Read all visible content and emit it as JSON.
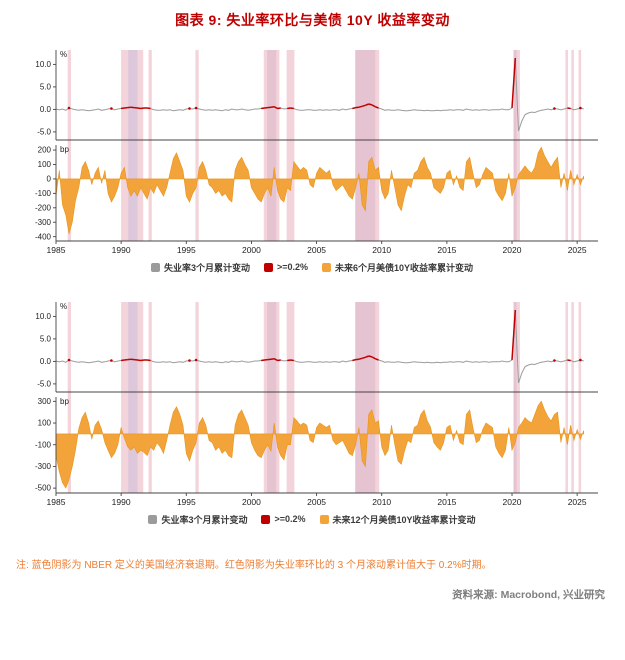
{
  "title": "图表 9:  失业率环比与美债 10Y 收益率变动",
  "note": "注: 蓝色阴影为 NBER 定义的美国经济衰退期。红色阴影为失业率环比的 3 个月滚动累计值大于 0.2%时期。",
  "source": "资料来源: Macrobond, 兴业研究",
  "colors": {
    "title": "#c00000",
    "gray_line": "#9b9b9b",
    "accent_red": "#c00000",
    "orange_area": "#f2a43a",
    "orange_stroke": "#e8941a",
    "band_red": "#e9b0bb",
    "band_nber": "#c9bcdc",
    "axis": "#444444",
    "note": "#ed7d31",
    "source": "#7f7f7f"
  },
  "chart_data": {
    "type": "line+area",
    "title": "失业率环比与美债 10Y 收益率变动",
    "x_start": 1985,
    "x_step_years": 0.25,
    "xlim": [
      1985,
      2026.6
    ],
    "x_ticks": [
      1985,
      1990,
      1995,
      2000,
      2005,
      2010,
      2015,
      2020,
      2025
    ],
    "threshold_pct": 0.2,
    "unemployment_3m_change_pct": [
      0.1,
      -0.1,
      0.1,
      -0.2,
      0.3,
      0.1,
      -0.1,
      -0.2,
      -0.1,
      -0.2,
      -0.3,
      -0.2,
      -0.1,
      0.1,
      -0.2,
      -0.1,
      0.1,
      0.2,
      -0.1,
      0.1,
      0.2,
      0.3,
      0.4,
      0.5,
      0.4,
      0.3,
      0.2,
      0.3,
      0.3,
      0.2,
      -0.1,
      -0.2,
      -0.2,
      -0.1,
      -0.2,
      -0.1,
      -0.3,
      -0.2,
      -0.1,
      -0.2,
      0.1,
      0.2,
      0.1,
      0.3,
      0.1,
      -0.1,
      -0.2,
      -0.1,
      -0.2,
      -0.1,
      -0.2,
      -0.3,
      -0.1,
      -0.2,
      0.1,
      -0.1,
      -0.1,
      0.1,
      -0.1,
      -0.2,
      -0.1,
      0.1,
      0.1,
      0.2,
      0.3,
      0.4,
      0.5,
      0.6,
      0.2,
      0.3,
      0.1,
      0.2,
      0.3,
      0.2,
      -0.1,
      -0.2,
      -0.2,
      -0.1,
      -0.1,
      -0.2,
      -0.2,
      -0.1,
      -0.2,
      -0.1,
      -0.2,
      -0.1,
      -0.1,
      -0.2,
      0.1,
      -0.1,
      0.1,
      0.2,
      0.4,
      0.5,
      0.7,
      0.9,
      1.2,
      1.0,
      0.6,
      0.3,
      0.1,
      -0.2,
      -0.1,
      -0.2,
      -0.2,
      -0.1,
      -0.2,
      -0.3,
      -0.3,
      -0.2,
      -0.1,
      -0.2,
      -0.2,
      -0.3,
      -0.2,
      -0.3,
      -0.3,
      -0.2,
      -0.3,
      -0.2,
      -0.2,
      -0.1,
      -0.2,
      -0.1,
      -0.1,
      -0.2,
      0.1,
      -0.1,
      -0.2,
      -0.1,
      -0.2,
      -0.1,
      -0.1,
      -0.2,
      -0.1,
      -0.1,
      -0.1,
      0.1,
      -0.1,
      -0.1,
      0.3,
      11.4,
      -4.8,
      -2.6,
      -1.2,
      -0.8,
      -0.6,
      -0.7,
      -0.4,
      -0.2,
      -0.1,
      0.1,
      -0.1,
      0.2,
      0.1,
      -0.1,
      0.1,
      0.3,
      0.2,
      -0.1,
      0.1,
      0.3,
      0.1
    ],
    "bands": [
      {
        "type": "red",
        "from": 1985.9,
        "to": 1986.15
      },
      {
        "type": "red",
        "from": 1990.0,
        "to": 1991.7
      },
      {
        "type": "nber",
        "from": 1990.55,
        "to": 1991.25
      },
      {
        "type": "red",
        "from": 1992.1,
        "to": 1992.35
      },
      {
        "type": "red",
        "from": 1995.7,
        "to": 1995.95
      },
      {
        "type": "nber",
        "from": 2001.2,
        "to": 2001.9
      },
      {
        "type": "red",
        "from": 2000.95,
        "to": 2002.15
      },
      {
        "type": "red",
        "from": 2002.7,
        "to": 2003.3
      },
      {
        "type": "nber",
        "from": 2007.95,
        "to": 2009.5
      },
      {
        "type": "red",
        "from": 2008.0,
        "to": 2009.8
      },
      {
        "type": "nber",
        "from": 2020.1,
        "to": 2020.35
      },
      {
        "type": "red",
        "from": 2020.15,
        "to": 2020.6
      },
      {
        "type": "red",
        "from": 2024.1,
        "to": 2024.3
      },
      {
        "type": "red",
        "from": 2024.55,
        "to": 2024.75
      },
      {
        "type": "red",
        "from": 2025.1,
        "to": 2025.3
      }
    ],
    "panels": [
      {
        "upper": {
          "unit": "%",
          "ytick_values": [
            10,
            5,
            0,
            -5
          ],
          "ylim": [
            -6.8,
            13.2
          ]
        },
        "lower": {
          "unit": "bp",
          "name": "未来6个月美债10Y收益率累计变动",
          "ytick_values": [
            200,
            100,
            0,
            -100,
            -200,
            -300,
            -400
          ],
          "ylim": [
            -430,
            235
          ],
          "values": [
            -120,
            60,
            -180,
            -250,
            -380,
            -300,
            -150,
            -60,
            80,
            120,
            60,
            -40,
            40,
            80,
            -30,
            60,
            -100,
            -160,
            -120,
            -60,
            40,
            80,
            -60,
            -120,
            -80,
            -120,
            -60,
            -100,
            -140,
            -60,
            -100,
            -40,
            -80,
            -120,
            -60,
            40,
            140,
            180,
            120,
            60,
            -120,
            -160,
            -100,
            -60,
            80,
            120,
            60,
            -40,
            -60,
            -100,
            -80,
            -120,
            -100,
            -140,
            -160,
            60,
            120,
            150,
            100,
            60,
            -60,
            -100,
            -140,
            -160,
            -100,
            -60,
            -120,
            80,
            -80,
            -140,
            -160,
            -60,
            -80,
            120,
            90,
            60,
            80,
            60,
            -40,
            -60,
            40,
            80,
            60,
            40,
            60,
            -40,
            -80,
            -60,
            -40,
            -80,
            -120,
            -140,
            -60,
            40,
            -180,
            -220,
            120,
            150,
            60,
            80,
            -80,
            -140,
            -100,
            60,
            -60,
            -180,
            -220,
            -120,
            -40,
            -60,
            40,
            60,
            120,
            150,
            80,
            40,
            -60,
            -80,
            -100,
            -60,
            40,
            60,
            -40,
            20,
            -60,
            -80,
            120,
            150,
            40,
            -60,
            -40,
            30,
            80,
            60,
            40,
            -80,
            -120,
            -150,
            -100,
            40,
            -120,
            -60,
            30,
            60,
            90,
            60,
            40,
            80,
            180,
            220,
            160,
            120,
            80,
            120,
            150,
            -60,
            40,
            -80,
            60,
            -40,
            30,
            -40,
            20
          ]
        },
        "legend": [
          {
            "color": "#9b9b9b",
            "label": "失业率3个月累计变动"
          },
          {
            "color": "#c00000",
            "label": ">=0.2%"
          },
          {
            "color": "#f2a43a",
            "label": "未来6个月美债10Y收益率累计变动"
          }
        ]
      },
      {
        "upper": {
          "unit": "%",
          "ytick_values": [
            10,
            5,
            0,
            -5
          ],
          "ylim": [
            -6.8,
            13.2
          ]
        },
        "lower": {
          "unit": "bp",
          "name": "未来12个月美债10Y收益率累计变动",
          "ytick_values": [
            300,
            100,
            -100,
            -300,
            -500
          ],
          "ylim": [
            -545,
            340
          ],
          "values": [
            -200,
            -350,
            -450,
            -500,
            -420,
            -300,
            -150,
            50,
            150,
            200,
            100,
            -50,
            80,
            120,
            40,
            -80,
            -150,
            -220,
            -180,
            -100,
            60,
            -40,
            -120,
            -150,
            -120,
            -180,
            -150,
            -170,
            -200,
            -120,
            -150,
            -80,
            -120,
            -180,
            -60,
            80,
            200,
            250,
            180,
            80,
            -180,
            -250,
            -150,
            -80,
            100,
            150,
            80,
            -60,
            -80,
            -150,
            -120,
            -180,
            -150,
            -200,
            -220,
            80,
            180,
            220,
            150,
            80,
            -80,
            -150,
            -200,
            -220,
            -150,
            -100,
            -160,
            100,
            -120,
            -200,
            -240,
            -100,
            -100,
            150,
            120,
            80,
            100,
            80,
            -60,
            -80,
            60,
            100,
            80,
            60,
            80,
            -60,
            -100,
            -80,
            -60,
            -120,
            -180,
            -200,
            -100,
            60,
            -250,
            -300,
            180,
            220,
            100,
            120,
            -120,
            -200,
            -150,
            80,
            -100,
            -250,
            -280,
            -160,
            -60,
            -80,
            60,
            80,
            180,
            220,
            120,
            60,
            -80,
            -120,
            -150,
            -80,
            60,
            80,
            -60,
            30,
            -80,
            -100,
            180,
            220,
            60,
            -80,
            -60,
            40,
            100,
            80,
            60,
            -120,
            -180,
            -220,
            -150,
            60,
            -150,
            -80,
            60,
            100,
            150,
            120,
            100,
            180,
            260,
            300,
            220,
            160,
            120,
            180,
            200,
            -80,
            60,
            -100,
            80,
            -60,
            40,
            -50,
            30
          ]
        },
        "legend": [
          {
            "color": "#9b9b9b",
            "label": "失业率3个月累计变动"
          },
          {
            "color": "#c00000",
            "label": ">=0.2%"
          },
          {
            "color": "#f2a43a",
            "label": "未来12个月美债10Y收益率累计变动"
          }
        ]
      }
    ]
  }
}
